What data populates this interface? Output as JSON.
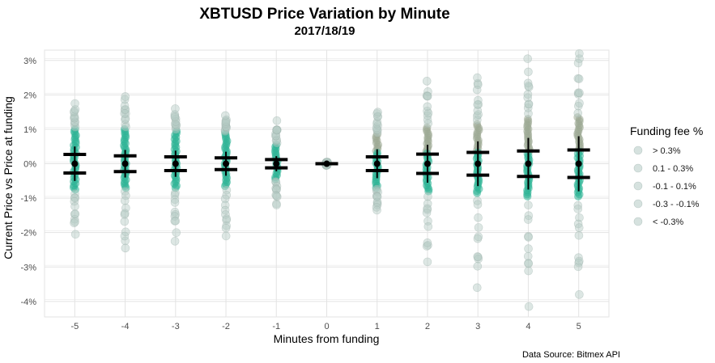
{
  "chart_data": {
    "type": "scatter",
    "title": "XBTUSD Price Variation by Minute",
    "subtitle": "2017/18/19",
    "xlabel": "Minutes from funding",
    "ylabel": "Current Price vs Price at funding",
    "caption": "Data Source: Bitmex API",
    "x_ticks": [
      -5,
      -4,
      -3,
      -2,
      -1,
      0,
      1,
      2,
      3,
      4,
      5
    ],
    "y_ticks": [
      -4,
      -3,
      -2,
      -1,
      0,
      1,
      2,
      3
    ],
    "y_tick_labels": [
      "-4%",
      "-3%",
      "-2%",
      "-1%",
      "0%",
      "1%",
      "2%",
      "3%"
    ],
    "xlim": [
      -5.6,
      5.6
    ],
    "ylim": [
      -4.45,
      3.3
    ],
    "legend": {
      "title": "Funding fee %",
      "position": "right",
      "entries": [
        "> 0.3%",
        "0.1 - 0.3%",
        "-0.1 - 0.1%",
        "-0.3 - -0.1%",
        "< -0.3%"
      ]
    },
    "colors": {
      "point_core": "#2ab393",
      "point_outlier": "#b4cac4",
      "point_upper": "#9aa892",
      "summary": "#000000",
      "grid": "#e3e3e3"
    },
    "series": [
      {
        "minute": -5,
        "mean": 0.0,
        "band": 0.27,
        "whisker": 0.5,
        "core": [
          -0.75,
          1.0
        ],
        "max": 1.75,
        "min": -2.05
      },
      {
        "minute": -4,
        "mean": 0.0,
        "band": 0.23,
        "whisker": 0.4,
        "core": [
          -0.7,
          1.0
        ],
        "max": 1.95,
        "min": -2.45
      },
      {
        "minute": -3,
        "mean": 0.0,
        "band": 0.2,
        "whisker": 0.38,
        "core": [
          -0.7,
          0.95
        ],
        "max": 1.6,
        "min": -2.25
      },
      {
        "minute": -2,
        "mean": 0.0,
        "band": 0.17,
        "whisker": 0.35,
        "core": [
          -0.65,
          0.9
        ],
        "max": 1.4,
        "min": -2.1
      },
      {
        "minute": -1,
        "mean": 0.0,
        "band": 0.12,
        "whisker": 0.22,
        "core": [
          -0.45,
          0.55
        ],
        "max": 1.25,
        "min": -1.2
      },
      {
        "minute": 0,
        "mean": 0.0,
        "band": 0.0,
        "whisker": 0.03,
        "core": [
          -0.03,
          0.03
        ],
        "max": 0.05,
        "min": -0.05
      },
      {
        "minute": 1,
        "mean": 0.0,
        "band": 0.2,
        "whisker": 0.42,
        "core": [
          -0.7,
          0.85
        ],
        "max": 1.5,
        "min": -1.35
      },
      {
        "minute": 2,
        "mean": 0.0,
        "band": 0.28,
        "whisker": 0.55,
        "core": [
          -0.8,
          1.05
        ],
        "max": 2.4,
        "min": -2.85
      },
      {
        "minute": 3,
        "mean": 0.0,
        "band": 0.33,
        "whisker": 0.65,
        "core": [
          -0.85,
          1.15
        ],
        "max": 2.5,
        "min": -3.6
      },
      {
        "minute": 4,
        "mean": 0.0,
        "band": 0.37,
        "whisker": 0.75,
        "core": [
          -0.95,
          1.3
        ],
        "max": 3.05,
        "min": -4.15
      },
      {
        "minute": 5,
        "mean": 0.0,
        "band": 0.4,
        "whisker": 0.8,
        "core": [
          -0.95,
          1.35
        ],
        "max": 3.2,
        "min": -3.8
      }
    ]
  }
}
